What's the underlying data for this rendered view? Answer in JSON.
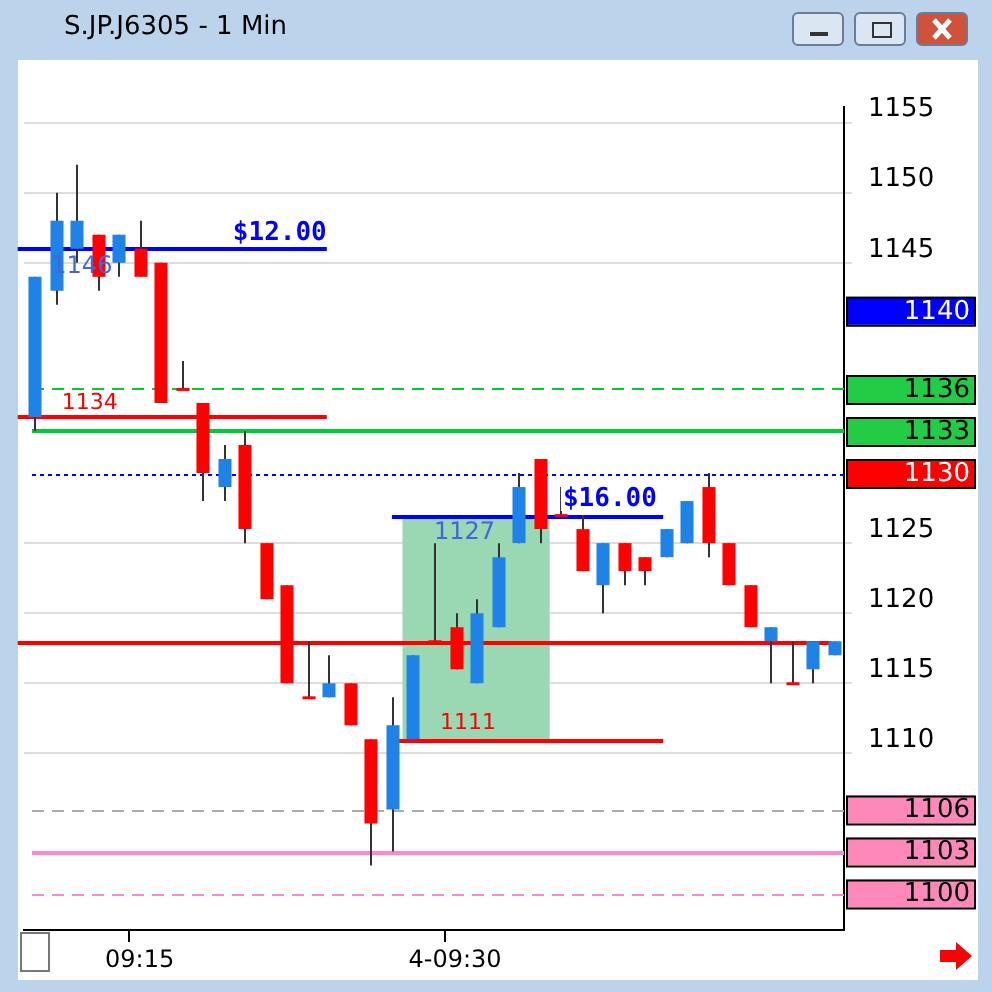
{
  "chart_data": {
    "type": "candlestick",
    "title": "S.JP.J6305 - 1 Min",
    "categories": [
      null,
      null,
      null,
      null,
      null,
      "09:15",
      null,
      null,
      null,
      null,
      null,
      null,
      null,
      null,
      null,
      null,
      null,
      null,
      null,
      null,
      "4-09:30",
      null,
      null,
      null,
      null,
      null,
      null,
      null,
      null,
      null,
      null,
      null,
      null,
      null,
      null,
      null,
      null,
      null,
      null
    ],
    "ohlc": [
      [
        1134,
        1144,
        1133,
        1144
      ],
      [
        1143,
        1150,
        1142,
        1148
      ],
      [
        1146,
        1152,
        1145,
        1148
      ],
      [
        1147,
        1147,
        1143,
        1144
      ],
      [
        1145,
        1147,
        1144,
        1147
      ],
      [
        1146,
        1148,
        1144,
        1144
      ],
      [
        1145,
        1145,
        1135,
        1135
      ],
      [
        1136,
        1138,
        1136,
        1136
      ],
      [
        1135,
        1135,
        1128,
        1130
      ],
      [
        1129,
        1132,
        1128,
        1131
      ],
      [
        1132,
        1133,
        1125,
        1126
      ],
      [
        1125,
        1125,
        1121,
        1121
      ],
      [
        1122,
        1122,
        1115,
        1115
      ],
      [
        1114,
        1118,
        1114,
        1114
      ],
      [
        1114,
        1117,
        1114,
        1115
      ],
      [
        1115,
        1115,
        1112,
        1112
      ],
      [
        1111,
        1111,
        1102,
        1105
      ],
      [
        1106,
        1114,
        1103,
        1112
      ],
      [
        1111,
        1117,
        1111,
        1117
      ],
      [
        1118,
        1125,
        1118,
        1118
      ],
      [
        1119,
        1120,
        1116,
        1116
      ],
      [
        1115,
        1121,
        1115,
        1120
      ],
      [
        1119,
        1125,
        1119,
        1124
      ],
      [
        1125,
        1130,
        1125,
        1129
      ],
      [
        1131,
        1131,
        1125,
        1126
      ],
      [
        1127,
        1129,
        1127,
        1127
      ],
      [
        1126,
        1127,
        1123,
        1123
      ],
      [
        1122,
        1125,
        1120,
        1125
      ],
      [
        1125,
        1125,
        1122,
        1123
      ],
      [
        1124,
        1124,
        1122,
        1123
      ],
      [
        1124,
        1126,
        1124,
        1126
      ],
      [
        1125,
        1128,
        1125,
        1128
      ],
      [
        1129,
        1130,
        1124,
        1125
      ],
      [
        1125,
        1125,
        1122,
        1122
      ],
      [
        1122,
        1122,
        1119,
        1119
      ],
      [
        1118,
        1119,
        1115,
        1119
      ],
      [
        1115,
        1118,
        1115,
        1115
      ],
      [
        1116,
        1118,
        1115,
        1118
      ],
      [
        1117,
        1118,
        1117,
        1118
      ]
    ],
    "colors": [
      "#1e82e6",
      "#1e82e6",
      "#1e82e6",
      "#ff0000",
      "#1e82e6",
      "#ff0000",
      "#ff0000",
      "#ff0000",
      "#ff0000",
      "#1e82e6",
      "#ff0000",
      "#ff0000",
      "#ff0000",
      "#ff0000",
      "#1e82e6",
      "#ff0000",
      "#ff0000",
      "#1e82e6",
      "#1e82e6",
      "#ff0000",
      "#ff0000",
      "#1e82e6",
      "#1e82e6",
      "#1e82e6",
      "#ff0000",
      "#ff0000",
      "#ff0000",
      "#1e82e6",
      "#ff0000",
      "#ff0000",
      "#1e82e6",
      "#1e82e6",
      "#ff0000",
      "#ff0000",
      "#ff0000",
      "#1e82e6",
      "#ff0000",
      "#1e82e6",
      "#1e82e6"
    ],
    "ylim": [
      1097.4,
      1156.1
    ],
    "yticks": [
      1110,
      1115,
      1120,
      1125,
      1145,
      1150,
      1155
    ],
    "grid": true,
    "ref_lines": [
      {
        "axis": "y",
        "value": 1146,
        "label": "1146",
        "color": "#0000ff"
      },
      {
        "axis": "y",
        "value": 1136,
        "label": "1136",
        "color": "#00cc33",
        "line_style": "dashed"
      },
      {
        "axis": "y",
        "value": 1134,
        "label": "1134",
        "color": "#ff0000"
      },
      {
        "axis": "y",
        "value": 1133,
        "label": "1133",
        "color": "#00cc33"
      },
      {
        "axis": "y",
        "value": 1130,
        "label": "1130",
        "color": "#0000ff",
        "line_style": "dotted"
      },
      {
        "axis": "y",
        "value": 1127,
        "label": "1127",
        "color": "#0000ff"
      },
      {
        "axis": "y",
        "value": 1118,
        "color": "#ff0000"
      },
      {
        "axis": "y",
        "value": 1111,
        "label": "1111",
        "color": "#ff0000"
      },
      {
        "axis": "y",
        "value": 1106,
        "label": "1106",
        "color": "#aaaaaa",
        "line_style": "dashed"
      },
      {
        "axis": "y",
        "value": 1103,
        "label": "1103",
        "color": "#ff88cc"
      },
      {
        "axis": "y",
        "value": 1100,
        "label": "1100",
        "color": "#ff88cc",
        "line_style": "dashed"
      }
    ],
    "bands": [
      {
        "axis": "y",
        "from": 1111,
        "to": 1127,
        "color": "#9ad8b4"
      }
    ],
    "annotations": [
      "$12.00",
      "$16.00",
      "1140"
    ]
  }
}
